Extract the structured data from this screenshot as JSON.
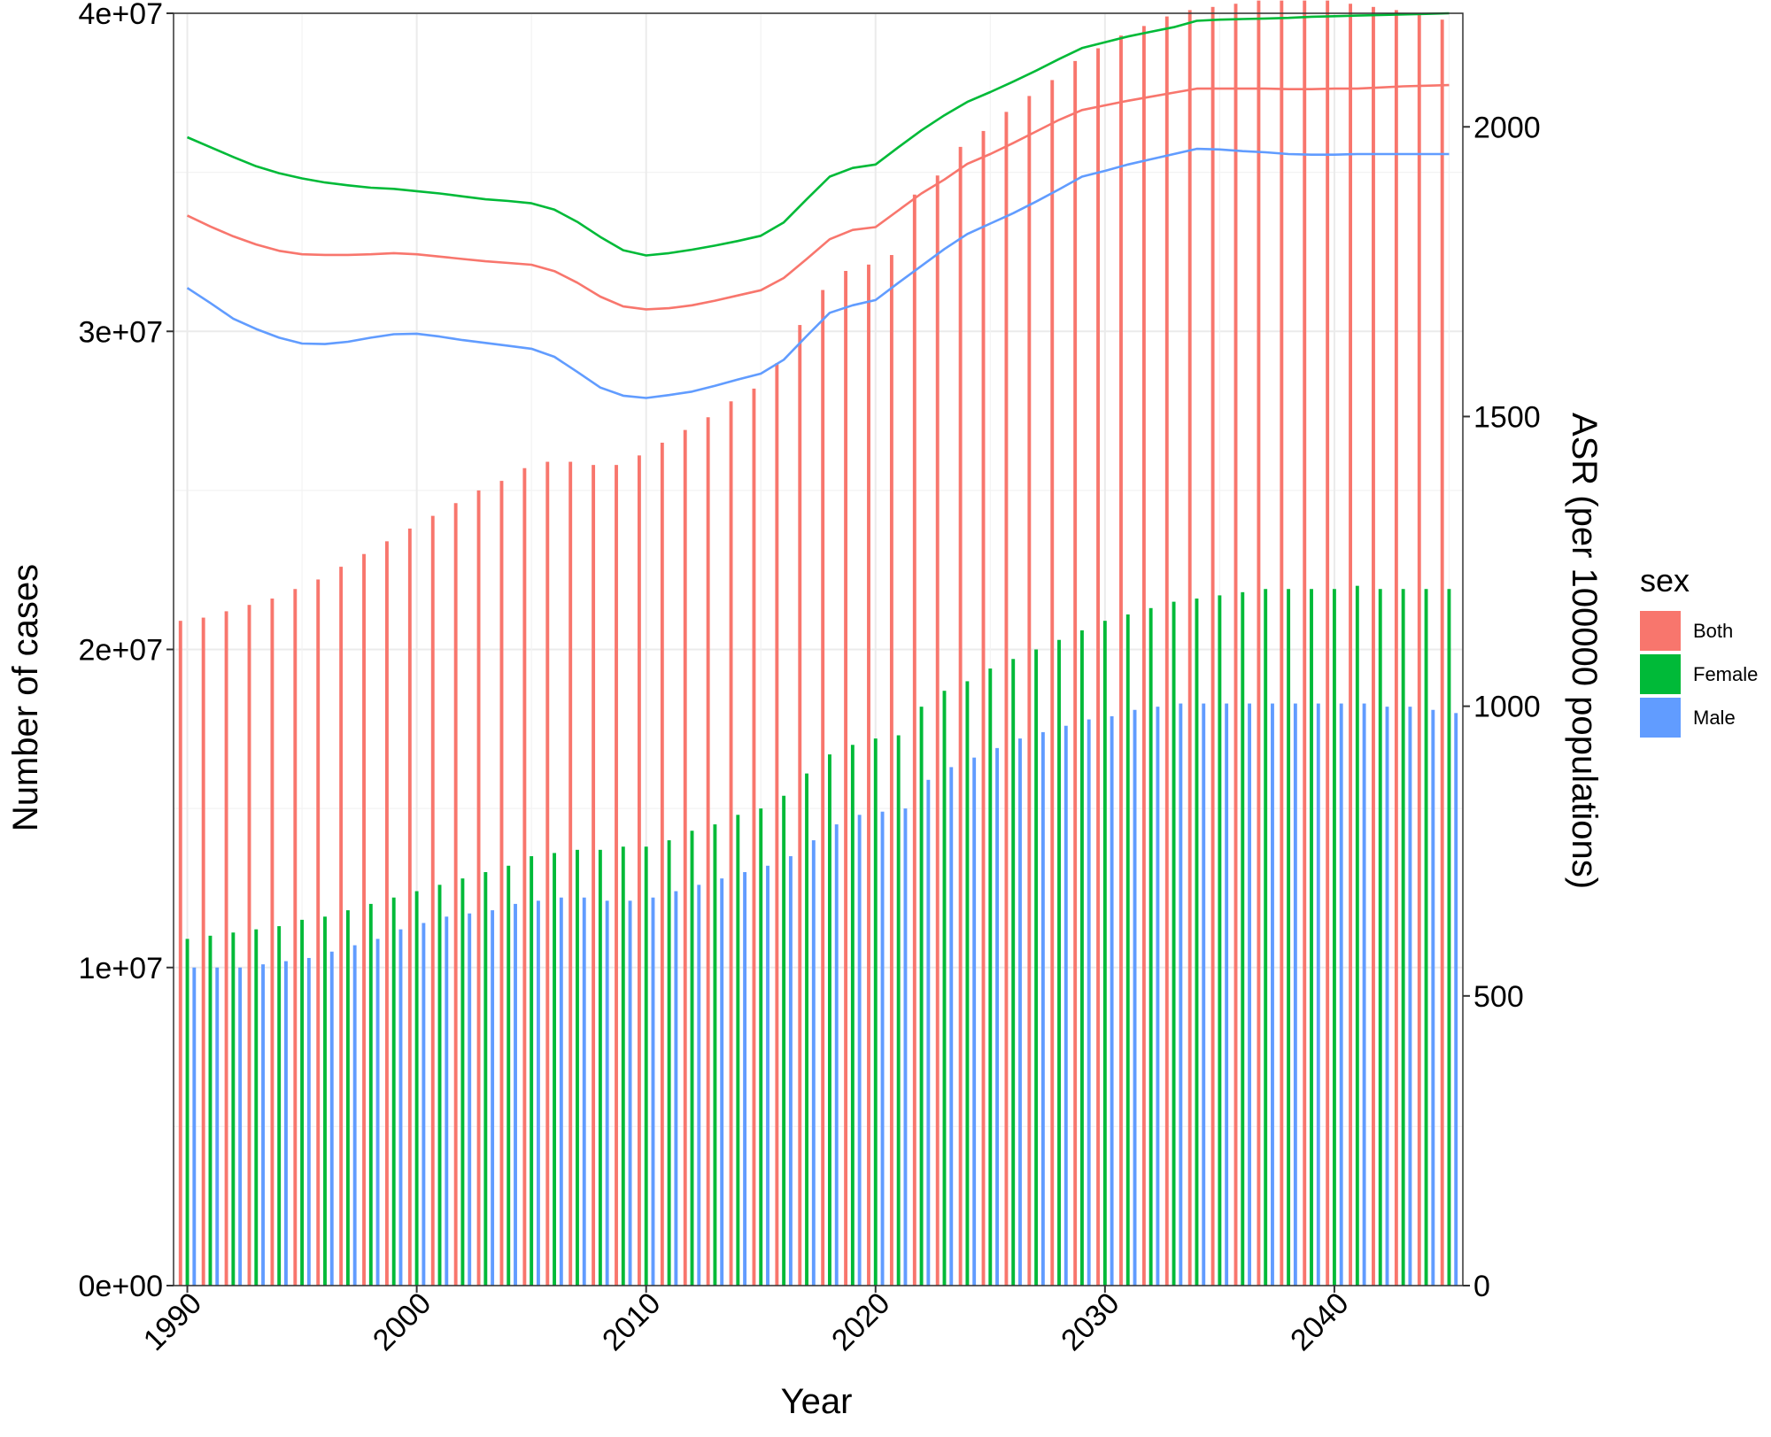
{
  "chart_data": {
    "type": "bar+line",
    "title": "",
    "xlabel": "Year",
    "ylabel_left": "Number of cases",
    "ylabel_right": "ASR (per 100000 populations)",
    "xlim": [
      1989.4,
      2045.6
    ],
    "ylim_left": [
      0,
      40000000
    ],
    "ylim_right": [
      0,
      2196
    ],
    "x_ticks": [
      1990,
      2000,
      2010,
      2020,
      2030,
      2040
    ],
    "x_tick_labels": [
      "1990",
      "2000",
      "2010",
      "2020",
      "2030",
      "2040"
    ],
    "y_left_ticks": [
      0,
      10000000,
      20000000,
      30000000,
      40000000
    ],
    "y_left_tick_labels": [
      "0e+00",
      "1e+07",
      "2e+07",
      "3e+07",
      "4e+07"
    ],
    "y_right_ticks": [
      0,
      500,
      1000,
      1500,
      2000
    ],
    "y_right_tick_labels": [
      "0",
      "500",
      "1000",
      "1500",
      "2000"
    ],
    "grid": true,
    "legend_title": "sex",
    "legend_position": "right",
    "years": [
      1990,
      1991,
      1992,
      1993,
      1994,
      1995,
      1996,
      1997,
      1998,
      1999,
      2000,
      2001,
      2002,
      2003,
      2004,
      2005,
      2006,
      2007,
      2008,
      2009,
      2010,
      2011,
      2012,
      2013,
      2014,
      2015,
      2016,
      2017,
      2018,
      2019,
      2020,
      2021,
      2022,
      2023,
      2024,
      2025,
      2026,
      2027,
      2028,
      2029,
      2030,
      2031,
      2032,
      2033,
      2034,
      2035,
      2036,
      2037,
      2038,
      2039,
      2040,
      2041,
      2042,
      2043,
      2044,
      2045
    ],
    "bar_series": [
      {
        "name": "Both",
        "color": "#F8766D",
        "values": [
          20900000,
          21000000,
          21200000,
          21400000,
          21600000,
          21900000,
          22200000,
          22600000,
          23000000,
          23400000,
          23800000,
          24200000,
          24600000,
          25000000,
          25300000,
          25700000,
          25900000,
          25900000,
          25800000,
          25800000,
          26100000,
          26500000,
          26900000,
          27300000,
          27800000,
          28200000,
          29000000,
          30200000,
          31300000,
          31900000,
          32100000,
          32400000,
          34300000,
          34900000,
          35800000,
          36300000,
          36900000,
          37400000,
          37900000,
          38500000,
          38900000,
          39300000,
          39600000,
          39900000,
          40100000,
          40200000,
          40300000,
          40400000,
          40400000,
          40400000,
          40400000,
          40300000,
          40200000,
          40100000,
          40000000,
          39800000
        ]
      },
      {
        "name": "Female",
        "color": "#00BA38",
        "values": [
          10900000,
          11000000,
          11100000,
          11200000,
          11300000,
          11500000,
          11600000,
          11800000,
          12000000,
          12200000,
          12400000,
          12600000,
          12800000,
          13000000,
          13200000,
          13500000,
          13600000,
          13700000,
          13700000,
          13800000,
          13800000,
          14000000,
          14300000,
          14500000,
          14800000,
          15000000,
          15400000,
          16100000,
          16700000,
          17000000,
          17200000,
          17300000,
          18200000,
          18700000,
          19000000,
          19400000,
          19700000,
          20000000,
          20300000,
          20600000,
          20900000,
          21100000,
          21300000,
          21500000,
          21600000,
          21700000,
          21800000,
          21900000,
          21900000,
          21900000,
          21900000,
          22000000,
          21900000,
          21900000,
          21900000,
          21900000
        ]
      },
      {
        "name": "Male",
        "color": "#619CFF",
        "values": [
          10000000,
          10000000,
          10000000,
          10100000,
          10200000,
          10300000,
          10500000,
          10700000,
          10900000,
          11200000,
          11400000,
          11600000,
          11700000,
          11800000,
          12000000,
          12100000,
          12200000,
          12200000,
          12100000,
          12100000,
          12200000,
          12400000,
          12600000,
          12800000,
          13000000,
          13200000,
          13500000,
          14000000,
          14500000,
          14800000,
          14900000,
          15000000,
          15900000,
          16300000,
          16600000,
          16900000,
          17200000,
          17400000,
          17600000,
          17800000,
          17900000,
          18100000,
          18200000,
          18300000,
          18300000,
          18300000,
          18300000,
          18300000,
          18300000,
          18300000,
          18300000,
          18300000,
          18200000,
          18200000,
          18100000,
          18000000
        ]
      }
    ],
    "line_series": [
      {
        "name": "Both",
        "color": "#F8766D",
        "values": [
          1847,
          1828,
          1811,
          1797,
          1786,
          1780,
          1779,
          1779,
          1780,
          1782,
          1780,
          1776,
          1772,
          1768,
          1765,
          1762,
          1751,
          1731,
          1707,
          1690,
          1685,
          1687,
          1692,
          1700,
          1709,
          1718,
          1739,
          1772,
          1806,
          1822,
          1827,
          1856,
          1885,
          1909,
          1936,
          1953,
          1972,
          1992,
          2012,
          2029,
          2037,
          2045,
          2052,
          2059,
          2066,
          2066,
          2066,
          2066,
          2065,
          2065,
          2066,
          2066,
          2068,
          2070,
          2071,
          2072
        ]
      },
      {
        "name": "Female",
        "color": "#00BA38",
        "values": [
          1982,
          1965,
          1948,
          1932,
          1920,
          1911,
          1904,
          1899,
          1895,
          1893,
          1889,
          1885,
          1880,
          1875,
          1872,
          1868,
          1857,
          1836,
          1810,
          1787,
          1778,
          1782,
          1788,
          1795,
          1803,
          1812,
          1835,
          1875,
          1914,
          1929,
          1935,
          1965,
          1994,
          2020,
          2043,
          2060,
          2078,
          2097,
          2117,
          2136,
          2146,
          2156,
          2164,
          2172,
          2183,
          2185,
          2186,
          2187,
          2188,
          2190,
          2191,
          2192,
          2193,
          2194,
          2195,
          2196
        ]
      },
      {
        "name": "Male",
        "color": "#619CFF",
        "values": [
          1722,
          1696,
          1669,
          1651,
          1636,
          1626,
          1625,
          1629,
          1636,
          1642,
          1643,
          1638,
          1632,
          1627,
          1622,
          1617,
          1603,
          1577,
          1550,
          1536,
          1532,
          1537,
          1543,
          1553,
          1564,
          1574,
          1598,
          1639,
          1679,
          1692,
          1701,
          1731,
          1760,
          1789,
          1815,
          1833,
          1851,
          1871,
          1892,
          1914,
          1924,
          1935,
          1944,
          1953,
          1962,
          1961,
          1958,
          1956,
          1953,
          1952,
          1952,
          1953,
          1953,
          1953,
          1953,
          1953
        ]
      }
    ]
  }
}
